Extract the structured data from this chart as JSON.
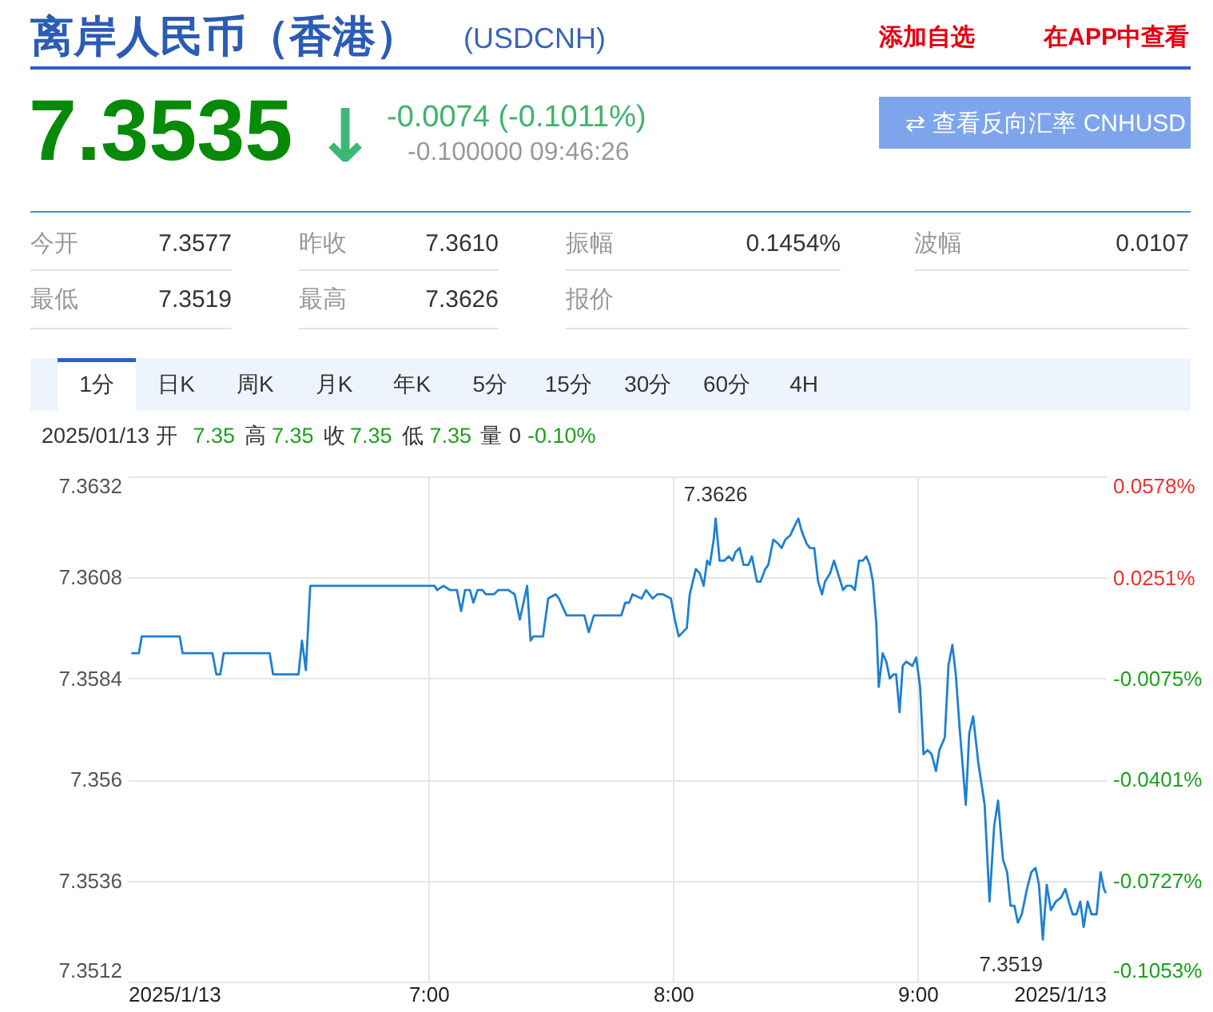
{
  "chart_data": [
    {
      "type": "other",
      "title": "离岸人民币（香港）",
      "subtitle": "(USDCNH)",
      "annotations": [
        "添加自选",
        "在APP中查看",
        "7.3535",
        "↓",
        "-0.0074 (-0.1011%)",
        "-0.100000 09:46:26",
        "⇄ 查看反向汇率 CNHUSD",
        "今开",
        "7.3577",
        "昨收",
        "7.3610",
        "振幅",
        "0.1454%",
        "波幅",
        "0.0107",
        "最低",
        "7.3519",
        "最高",
        "7.3626",
        "报价",
        "1分",
        "日K",
        "周K",
        "月K",
        "年K",
        "5分",
        "15分",
        "30分",
        "60分",
        "4H",
        "2025/01/13 开",
        "7.35",
        "高",
        "7.35",
        "收",
        "7.35",
        "低",
        "7.35",
        "量 0",
        "-0.10%"
      ]
    },
    {
      "type": "line",
      "x": [
        5.784,
        5.815,
        5.827,
        5.982,
        5.994,
        6.116,
        6.132,
        6.148,
        6.162,
        6.35,
        6.364,
        6.468,
        6.482,
        6.498,
        6.516,
        7.025,
        7.035,
        7.061,
        7.088,
        7.116,
        7.133,
        7.149,
        7.169,
        7.183,
        7.2,
        7.22,
        7.234,
        7.267,
        7.285,
        7.326,
        7.352,
        7.373,
        7.403,
        7.417,
        7.428,
        7.468,
        7.489,
        7.519,
        7.533,
        7.564,
        7.58,
        7.637,
        7.655,
        7.676,
        7.788,
        7.804,
        7.82,
        7.834,
        7.871,
        7.889,
        7.916,
        7.936,
        7.958,
        7.991,
        8.007,
        8.023,
        8.056,
        8.068,
        8.093,
        8.109,
        8.125,
        8.139,
        8.15,
        8.166,
        8.174,
        8.19,
        8.21,
        8.227,
        8.243,
        8.255,
        8.272,
        8.288,
        8.308,
        8.322,
        8.343,
        8.357,
        8.377,
        8.389,
        8.41,
        8.43,
        8.444,
        8.459,
        8.479,
        8.495,
        8.512,
        8.526,
        8.546,
        8.56,
        8.577,
        8.593,
        8.609,
        8.621,
        8.642,
        8.658,
        8.674,
        8.695,
        8.709,
        8.729,
        8.743,
        8.76,
        8.776,
        8.79,
        8.804,
        8.817,
        8.831,
        8.841,
        8.857,
        8.872,
        8.886,
        8.902,
        8.912,
        8.926,
        8.939,
        8.953,
        8.979,
        8.994,
        9.01,
        9.024,
        9.04,
        9.057,
        9.075,
        9.089,
        9.111,
        9.126,
        9.142,
        9.156,
        9.172,
        9.197,
        9.211,
        9.227,
        9.248,
        9.274,
        9.294,
        9.313,
        9.329,
        9.349,
        9.366,
        9.38,
        9.396,
        9.41,
        9.426,
        9.447,
        9.465,
        9.482,
        9.496,
        9.512,
        9.528,
        9.545,
        9.565,
        9.587,
        9.604,
        9.618,
        9.634,
        9.65,
        9.665,
        9.679,
        9.695,
        9.711,
        9.732,
        9.748,
        9.762,
        9.77
      ],
      "series": [
        {
          "color": "#1f80d0",
          "values": [
            7.359,
            7.359,
            7.3594,
            7.3594,
            7.359,
            7.359,
            7.3585,
            7.3585,
            7.359,
            7.359,
            7.3585,
            7.3585,
            7.3593,
            7.3586,
            7.3606,
            7.3606,
            7.3605,
            7.3606,
            7.3605,
            7.3605,
            7.36,
            7.3605,
            7.3605,
            7.3602,
            7.3605,
            7.3605,
            7.3604,
            7.3604,
            7.3605,
            7.3605,
            7.3604,
            7.3598,
            7.3606,
            7.3593,
            7.3594,
            7.3594,
            7.3603,
            7.3604,
            7.3603,
            7.3599,
            7.3599,
            7.3599,
            7.3595,
            7.3599,
            7.3599,
            7.3602,
            7.3602,
            7.3604,
            7.3603,
            7.3605,
            7.3603,
            7.3604,
            7.3604,
            7.3603,
            7.3598,
            7.3594,
            7.3596,
            7.3604,
            7.361,
            7.3609,
            7.3606,
            7.3612,
            7.3611,
            7.3617,
            7.3622,
            7.3612,
            7.3612,
            7.3613,
            7.3612,
            7.3614,
            7.3615,
            7.3611,
            7.3611,
            7.3613,
            7.3607,
            7.3607,
            7.361,
            7.3611,
            7.3617,
            7.3616,
            7.3615,
            7.3617,
            7.3618,
            7.362,
            7.3622,
            7.3619,
            7.3616,
            7.3615,
            7.3615,
            7.3607,
            7.3604,
            7.3607,
            7.3609,
            7.3612,
            7.3609,
            7.3605,
            7.3606,
            7.3606,
            7.3605,
            7.3612,
            7.3612,
            7.3613,
            7.3611,
            7.3607,
            7.3597,
            7.3582,
            7.359,
            7.3588,
            7.3584,
            7.3585,
            7.3585,
            7.3576,
            7.3587,
            7.3588,
            7.3587,
            7.3589,
            7.3582,
            7.3566,
            7.3567,
            7.3566,
            7.3562,
            7.3567,
            7.357,
            7.3587,
            7.3592,
            7.3585,
            7.3572,
            7.3554,
            7.3571,
            7.3575,
            7.3564,
            7.3554,
            7.3531,
            7.3549,
            7.3555,
            7.3541,
            7.3538,
            7.353,
            7.353,
            7.3526,
            7.3528,
            7.3534,
            7.3538,
            7.3539,
            7.3535,
            7.3522,
            7.3535,
            7.3529,
            7.3531,
            7.3532,
            7.3534,
            7.3531,
            7.3528,
            7.3528,
            7.3531,
            7.3525,
            7.3531,
            7.3528,
            7.3528,
            7.3538,
            7.3534,
            7.3533
          ]
        }
      ],
      "xlim": [
        5.77,
        9.77
      ],
      "xticks": [
        {
          "value": 5.77,
          "label": "2025/1/13"
        },
        {
          "value": 7,
          "label": "7:00"
        },
        {
          "value": 8,
          "label": "8:00"
        },
        {
          "value": 9,
          "label": "9:00"
        },
        {
          "value": 9.77,
          "label": "2025/1/13"
        }
      ],
      "ylim": [
        7.3512,
        7.3632
      ],
      "yticks": [
        7.3632,
        7.3608,
        7.3584,
        7.356,
        7.3536,
        7.3512
      ],
      "y2lim": [
        -0.1053,
        0.0578
      ],
      "y2ticks": [
        {
          "value": 0.0578,
          "label": "0.0578%"
        },
        {
          "value": 0.0251,
          "label": "0.0251%"
        },
        {
          "value": -0.0075,
          "label": "-0.0075%"
        },
        {
          "value": -0.0401,
          "label": "-0.0401%"
        },
        {
          "value": -0.0727,
          "label": "-0.0727%"
        },
        {
          "value": -0.1053,
          "label": "-0.1053%"
        }
      ],
      "grid": true,
      "annotations": [
        "7.3626",
        "7.3519"
      ]
    }
  ]
}
